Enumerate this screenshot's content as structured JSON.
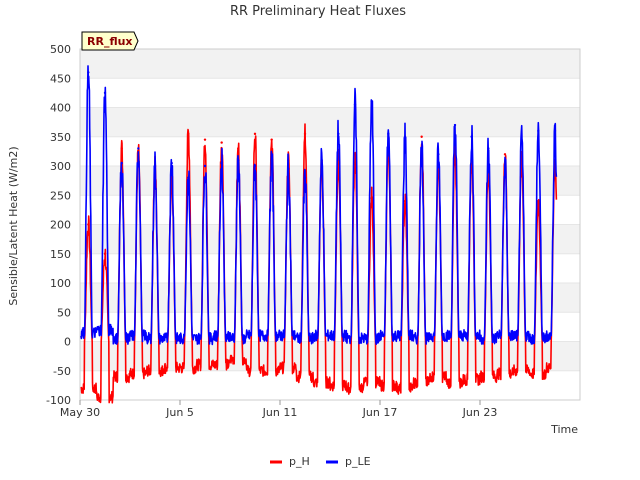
{
  "chart_data": {
    "type": "line",
    "title": "RR Preliminary Heat Fluxes",
    "xlabel": "Time",
    "ylabel": "Sensible/Latent Heat (W/m2)",
    "badge": "RR_flux",
    "ylim": [
      -100,
      500
    ],
    "yticks": [
      -100,
      -50,
      0,
      50,
      100,
      150,
      200,
      250,
      300,
      350,
      400,
      450,
      500
    ],
    "xlim_day": [
      0,
      30
    ],
    "xticks": [
      {
        "day": 0,
        "label": "May 30"
      },
      {
        "day": 6,
        "label": "Jun 5"
      },
      {
        "day": 12,
        "label": "Jun 11"
      },
      {
        "day": 18,
        "label": "Jun 17"
      },
      {
        "day": 24,
        "label": "Jun 23"
      }
    ],
    "days": [
      "May 30",
      "May 31",
      "Jun 1",
      "Jun 2",
      "Jun 3",
      "Jun 4",
      "Jun 5",
      "Jun 6",
      "Jun 7",
      "Jun 8",
      "Jun 9",
      "Jun 10",
      "Jun 11",
      "Jun 12",
      "Jun 13",
      "Jun 14",
      "Jun 15",
      "Jun 16",
      "Jun 17",
      "Jun 18",
      "Jun 19",
      "Jun 20",
      "Jun 21",
      "Jun 22",
      "Jun 23",
      "Jun 24",
      "Jun 25",
      "Jun 26",
      "Jun 27"
    ],
    "grid": true,
    "legend_position": "bottom-center",
    "series": [
      {
        "name": "p_H",
        "color": "#ff0000",
        "daily_peak": [
          200,
          150,
          330,
          325,
          300,
          280,
          355,
          345,
          340,
          330,
          355,
          345,
          310,
          355,
          300,
          310,
          320,
          245,
          330,
          240,
          350,
          300,
          320,
          310,
          290,
          320,
          310,
          240,
          310
        ],
        "daily_min": [
          -80,
          -95,
          -60,
          -55,
          -50,
          -45,
          -45,
          -40,
          -40,
          -30,
          -50,
          -50,
          -45,
          -60,
          -70,
          -75,
          -80,
          -70,
          -75,
          -80,
          -70,
          -60,
          -70,
          -65,
          -60,
          -55,
          -50,
          -55,
          -45
        ]
      },
      {
        "name": "p_LE",
        "color": "#0000ff",
        "daily_peak": [
          460,
          425,
          305,
          330,
          300,
          305,
          280,
          300,
          305,
          310,
          300,
          310,
          295,
          280,
          310,
          355,
          405,
          410,
          355,
          350,
          330,
          320,
          370,
          350,
          330,
          300,
          340,
          360,
          360
        ],
        "daily_min": [
          15,
          20,
          5,
          10,
          5,
          5,
          5,
          5,
          10,
          5,
          10,
          10,
          10,
          5,
          10,
          10,
          5,
          5,
          10,
          10,
          5,
          10,
          10,
          10,
          5,
          10,
          10,
          5,
          10
        ]
      }
    ]
  }
}
